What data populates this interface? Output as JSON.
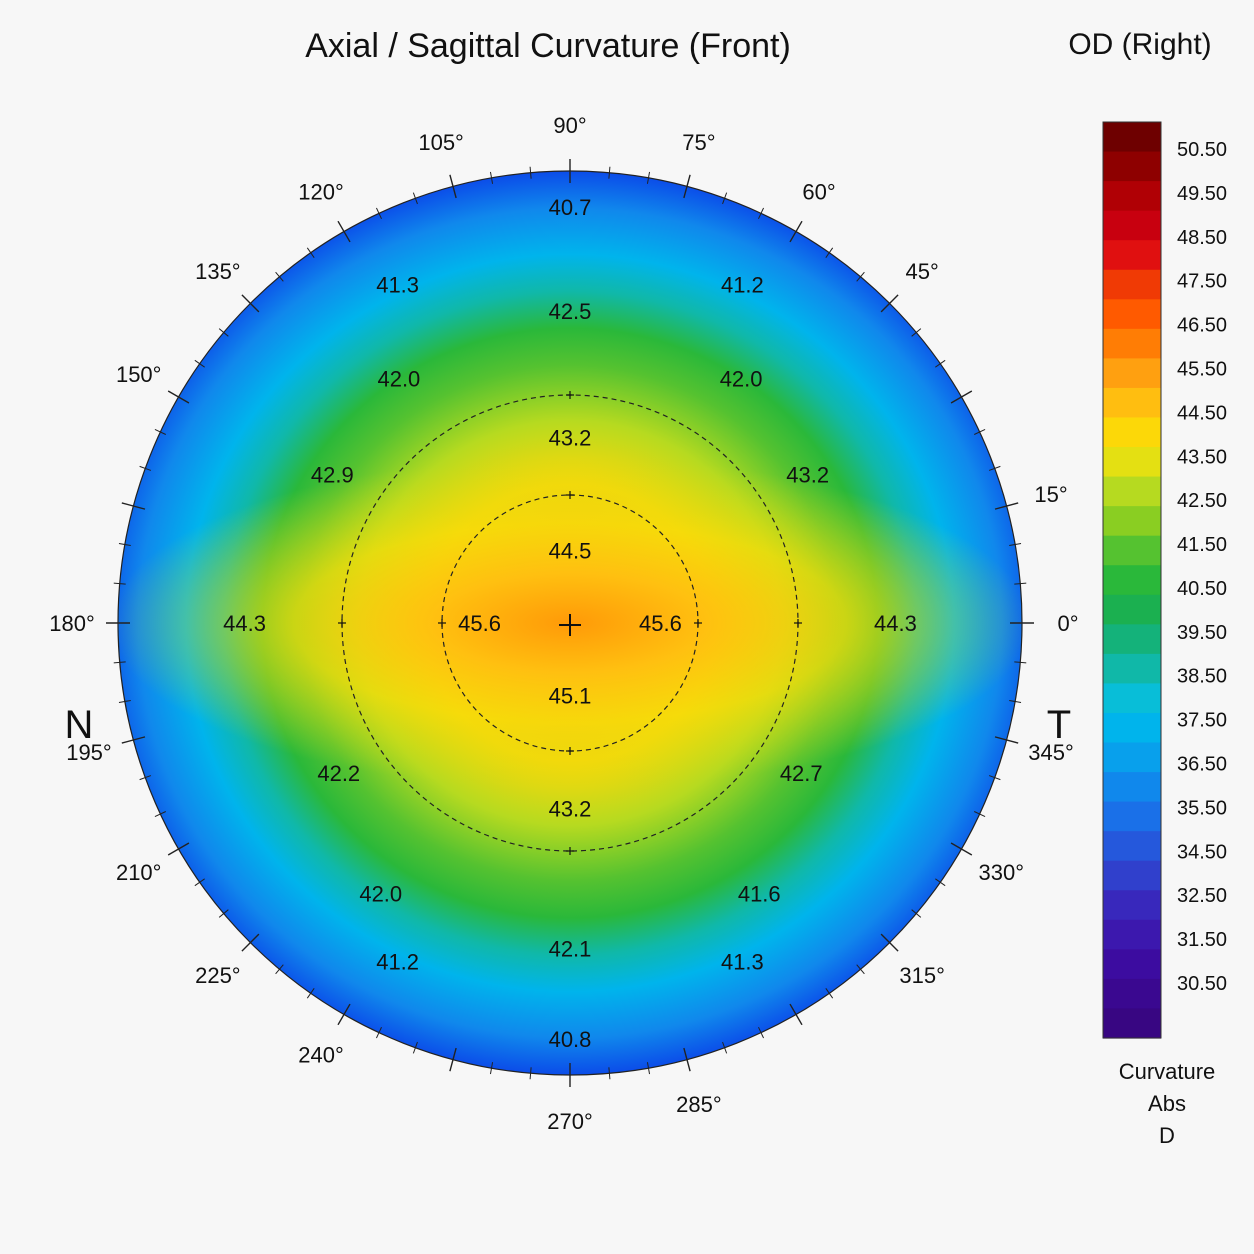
{
  "chart_data": {
    "type": "heatmap",
    "title": "Axial / Sagittal Curvature (Front)",
    "eye_label": "OD (Right)",
    "nasal_label": "N",
    "temporal_label": "T",
    "angle_labels": [
      {
        "deg": 0,
        "text": "0°"
      },
      {
        "deg": 15,
        "text": "15°"
      },
      {
        "deg": 45,
        "text": "45°"
      },
      {
        "deg": 60,
        "text": "60°"
      },
      {
        "deg": 75,
        "text": "75°"
      },
      {
        "deg": 90,
        "text": "90°"
      },
      {
        "deg": 105,
        "text": "105°"
      },
      {
        "deg": 120,
        "text": "120°"
      },
      {
        "deg": 135,
        "text": "135°"
      },
      {
        "deg": 150,
        "text": "150°"
      },
      {
        "deg": 180,
        "text": "180°"
      },
      {
        "deg": 195,
        "text": "195°"
      },
      {
        "deg": 210,
        "text": "210°"
      },
      {
        "deg": 225,
        "text": "225°"
      },
      {
        "deg": 240,
        "text": "240°"
      },
      {
        "deg": 270,
        "text": "270°"
      },
      {
        "deg": 285,
        "text": "285°"
      },
      {
        "deg": 315,
        "text": "315°"
      },
      {
        "deg": 330,
        "text": "330°"
      },
      {
        "deg": 345,
        "text": "345°"
      }
    ],
    "readings": [
      {
        "ring": 0.92,
        "deg": 90,
        "value": "40.7"
      },
      {
        "ring": 0.92,
        "deg": 270,
        "value": "40.8"
      },
      {
        "ring": 0.84,
        "deg": 117,
        "value": "41.3"
      },
      {
        "ring": 0.84,
        "deg": 63,
        "value": "41.2"
      },
      {
        "ring": 0.84,
        "deg": 243,
        "value": "41.2"
      },
      {
        "ring": 0.84,
        "deg": 297,
        "value": "41.3"
      },
      {
        "ring": 0.69,
        "deg": 90,
        "value": "42.5"
      },
      {
        "ring": 0.72,
        "deg": 270,
        "value": "42.1"
      },
      {
        "ring": 0.66,
        "deg": 125,
        "value": "42.0"
      },
      {
        "ring": 0.66,
        "deg": 55,
        "value": "42.0"
      },
      {
        "ring": 0.73,
        "deg": 235,
        "value": "42.0"
      },
      {
        "ring": 0.73,
        "deg": 305,
        "value": "41.6"
      },
      {
        "ring": 0.62,
        "deg": 148,
        "value": "42.9"
      },
      {
        "ring": 0.62,
        "deg": 32,
        "value": "43.2"
      },
      {
        "ring": 0.61,
        "deg": 213,
        "value": "42.2"
      },
      {
        "ring": 0.61,
        "deg": 327,
        "value": "42.7"
      },
      {
        "ring": 0.41,
        "deg": 90,
        "value": "43.2"
      },
      {
        "ring": 0.41,
        "deg": 270,
        "value": "43.2"
      },
      {
        "ring": 0.72,
        "deg": 180,
        "value": "44.3"
      },
      {
        "ring": 0.72,
        "deg": 0,
        "value": "44.3"
      },
      {
        "ring": 0.16,
        "deg": 90,
        "value": "44.5"
      },
      {
        "ring": 0.16,
        "deg": 270,
        "value": "45.1"
      },
      {
        "ring": 0.2,
        "deg": 180,
        "value": "45.6"
      },
      {
        "ring": 0.2,
        "deg": 0,
        "value": "45.6"
      }
    ],
    "zones_mm": [
      3,
      5
    ],
    "colorbar": {
      "ticks": [
        "50.50",
        "49.50",
        "48.50",
        "47.50",
        "46.50",
        "45.50",
        "44.50",
        "43.50",
        "42.50",
        "41.50",
        "40.50",
        "39.50",
        "38.50",
        "37.50",
        "36.50",
        "35.50",
        "34.50",
        "32.50",
        "31.50",
        "30.50"
      ],
      "colors": [
        "#6e0000",
        "#8e0000",
        "#b00005",
        "#c8000f",
        "#e01010",
        "#f03a05",
        "#ff5a00",
        "#ff7d05",
        "#ffa010",
        "#ffbe10",
        "#fcd808",
        "#e4e012",
        "#b6da20",
        "#8ace22",
        "#55c230",
        "#2ab83a",
        "#1bb050",
        "#14b27a",
        "#10b8a8",
        "#08bed8",
        "#00b4ec",
        "#08a0ec",
        "#1088ec",
        "#1a70e8",
        "#2558dc",
        "#3040cc",
        "#3828bc",
        "#3c18ae",
        "#3c0ca0",
        "#3a0890",
        "#380682"
      ],
      "label_lines": [
        "Curvature",
        "Abs",
        "D"
      ]
    }
  }
}
